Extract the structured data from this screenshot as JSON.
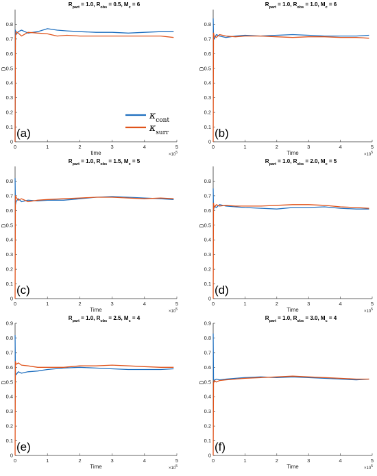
{
  "colors": {
    "cont": "#1f6fbf",
    "surr": "#e0531b"
  },
  "legend": {
    "entries": [
      {
        "symbol": "κ",
        "sub": "cont",
        "color_key": "cont"
      },
      {
        "symbol": "κ",
        "sub": "surr",
        "color_key": "surr"
      }
    ]
  },
  "chart_data": [
    {
      "type": "line",
      "panel_label": "(a)",
      "title": {
        "main_parts": [
          "R",
          "part",
          " = 1.0,   R",
          "obs",
          " = 0.5,   M",
          "c",
          " = 6"
        ]
      },
      "xlabel": "time",
      "ylabel": "D",
      "xlim": [
        0,
        5
      ],
      "ylim": [
        0,
        0.9
      ],
      "x_exponent": "×10",
      "x_exponent_power": "5",
      "xticks": [
        "0",
        "1",
        "2",
        "3",
        "4",
        "5"
      ],
      "yticks": [
        "0",
        "0.1",
        "0.2",
        "0.3",
        "0.4",
        "0.5",
        "0.6",
        "0.7",
        "0.8"
      ],
      "series": [
        {
          "name": "κcont",
          "color_key": "cont",
          "x": [
            0,
            0.01,
            0.03,
            0.1,
            0.2,
            0.4,
            0.7,
            1.0,
            1.3,
            1.6,
            2.0,
            2.5,
            3.0,
            3.5,
            4.0,
            4.5,
            4.9
          ],
          "y": [
            0,
            0.76,
            0.73,
            0.75,
            0.76,
            0.74,
            0.75,
            0.77,
            0.76,
            0.755,
            0.75,
            0.745,
            0.745,
            0.74,
            0.745,
            0.75,
            0.75
          ]
        },
        {
          "name": "κsurr",
          "color_key": "surr",
          "x": [
            0,
            0.01,
            0.03,
            0.1,
            0.2,
            0.4,
            0.7,
            1.0,
            1.3,
            1.6,
            2.0,
            2.5,
            3.0,
            3.5,
            4.0,
            4.5,
            4.9
          ],
          "y": [
            0,
            0.72,
            0.75,
            0.74,
            0.72,
            0.745,
            0.74,
            0.735,
            0.72,
            0.725,
            0.72,
            0.72,
            0.72,
            0.72,
            0.72,
            0.72,
            0.71
          ]
        }
      ]
    },
    {
      "type": "line",
      "panel_label": "(b)",
      "title": {
        "main_parts": [
          "R",
          "part",
          " = 1.0,   R",
          "obs",
          " = 1.0,   M",
          "c",
          " = 6"
        ]
      },
      "xlabel": "Time",
      "ylabel": "D",
      "xlim": [
        0,
        5
      ],
      "ylim": [
        0,
        0.9
      ],
      "x_exponent": "×10",
      "x_exponent_power": "5",
      "xticks": [
        "0",
        "1",
        "2",
        "3",
        "4",
        "5"
      ],
      "yticks": [
        "0",
        "0.1",
        "0.2",
        "0.3",
        "0.4",
        "0.5",
        "0.6",
        "0.7",
        "0.8"
      ],
      "series": [
        {
          "name": "κcont",
          "color_key": "cont",
          "x": [
            0,
            0.01,
            0.03,
            0.1,
            0.2,
            0.4,
            0.7,
            1.0,
            1.5,
            2.0,
            2.5,
            3.0,
            3.5,
            4.0,
            4.5,
            4.9
          ],
          "y": [
            0.84,
            0.72,
            0.7,
            0.73,
            0.72,
            0.71,
            0.72,
            0.725,
            0.72,
            0.725,
            0.73,
            0.725,
            0.72,
            0.72,
            0.72,
            0.725
          ]
        },
        {
          "name": "κsurr",
          "color_key": "surr",
          "x": [
            0,
            0.01,
            0.03,
            0.1,
            0.2,
            0.4,
            0.7,
            1.0,
            1.5,
            2.0,
            2.5,
            3.0,
            3.5,
            4.0,
            4.5,
            4.9
          ],
          "y": [
            0,
            0.74,
            0.72,
            0.71,
            0.73,
            0.72,
            0.715,
            0.72,
            0.72,
            0.715,
            0.71,
            0.715,
            0.715,
            0.71,
            0.71,
            0.705
          ]
        }
      ]
    },
    {
      "type": "line",
      "panel_label": "(c)",
      "title": {
        "main_parts": [
          "R",
          "part",
          " = 1.0,   R",
          "obs",
          " = 1.5,   M",
          "c",
          " = 5"
        ]
      },
      "xlabel": "Time",
      "ylabel": "D",
      "xlim": [
        0,
        5
      ],
      "ylim": [
        0,
        0.9
      ],
      "x_exponent": "×10",
      "x_exponent_power": "5",
      "xticks": [
        "0",
        "1",
        "2",
        "3",
        "4",
        "5"
      ],
      "yticks": [
        "0",
        "0.1",
        "0.2",
        "0.3",
        "0.4",
        "0.5",
        "0.6",
        "0.7",
        "0.8"
      ],
      "series": [
        {
          "name": "κcont",
          "color_key": "cont",
          "x": [
            0,
            0.01,
            0.03,
            0.1,
            0.2,
            0.4,
            0.7,
            1.0,
            1.5,
            2.0,
            2.5,
            3.0,
            3.5,
            4.0,
            4.5,
            4.9
          ],
          "y": [
            0.82,
            0.64,
            0.66,
            0.68,
            0.66,
            0.67,
            0.665,
            0.67,
            0.67,
            0.68,
            0.69,
            0.695,
            0.69,
            0.685,
            0.68,
            0.675
          ]
        },
        {
          "name": "κsurr",
          "color_key": "surr",
          "x": [
            0,
            0.01,
            0.03,
            0.1,
            0.2,
            0.4,
            0.7,
            1.0,
            1.5,
            2.0,
            2.5,
            3.0,
            3.5,
            4.0,
            4.5,
            4.9
          ],
          "y": [
            0,
            0.7,
            0.69,
            0.67,
            0.68,
            0.66,
            0.67,
            0.675,
            0.68,
            0.685,
            0.69,
            0.69,
            0.685,
            0.68,
            0.685,
            0.68
          ]
        }
      ]
    },
    {
      "type": "line",
      "panel_label": "(d)",
      "title": {
        "main_parts": [
          "R",
          "part",
          " = 1.0,   R",
          "obs",
          " = 2.0,   M",
          "c",
          " = 5"
        ]
      },
      "xlabel": "Time",
      "ylabel": "D",
      "xlim": [
        0,
        5
      ],
      "ylim": [
        0,
        0.9
      ],
      "x_exponent": "×10",
      "x_exponent_power": "5",
      "xticks": [
        "0",
        "1",
        "2",
        "3",
        "4",
        "5"
      ],
      "yticks": [
        "0",
        "0.1",
        "0.2",
        "0.3",
        "0.4",
        "0.5",
        "0.6",
        "0.7",
        "0.8"
      ],
      "series": [
        {
          "name": "κcont",
          "color_key": "cont",
          "x": [
            0,
            0.01,
            0.03,
            0.1,
            0.2,
            0.4,
            0.7,
            1.0,
            1.5,
            2.0,
            2.5,
            3.0,
            3.5,
            4.0,
            4.5,
            4.9
          ],
          "y": [
            0.75,
            0.6,
            0.63,
            0.62,
            0.64,
            0.63,
            0.625,
            0.62,
            0.615,
            0.61,
            0.62,
            0.62,
            0.625,
            0.615,
            0.61,
            0.61
          ]
        },
        {
          "name": "κsurr",
          "color_key": "surr",
          "x": [
            0,
            0.01,
            0.03,
            0.1,
            0.2,
            0.4,
            0.7,
            1.0,
            1.5,
            2.0,
            2.5,
            3.0,
            3.5,
            4.0,
            4.5,
            4.9
          ],
          "y": [
            0,
            0.65,
            0.62,
            0.64,
            0.63,
            0.635,
            0.63,
            0.63,
            0.63,
            0.635,
            0.64,
            0.64,
            0.635,
            0.625,
            0.62,
            0.615
          ]
        }
      ]
    },
    {
      "type": "line",
      "panel_label": "(e)",
      "title": {
        "main_parts": [
          "R",
          "part",
          " = 1.0,   R",
          "obs",
          " = 2.5,   M",
          "c",
          " = 4"
        ]
      },
      "xlabel": "Time",
      "ylabel": "D",
      "xlim": [
        0,
        5
      ],
      "ylim": [
        0,
        0.9
      ],
      "x_exponent": "×10",
      "x_exponent_power": "5",
      "xticks": [
        "0",
        "1",
        "2",
        "3",
        "4",
        "5"
      ],
      "yticks": [
        "0",
        "0.1",
        "0.2",
        "0.3",
        "0.4",
        "0.5",
        "0.6",
        "0.7",
        "0.8",
        "0.9"
      ],
      "series": [
        {
          "name": "κcont",
          "color_key": "cont",
          "x": [
            0,
            0.01,
            0.03,
            0.1,
            0.2,
            0.4,
            0.7,
            1.0,
            1.5,
            2.0,
            2.5,
            3.0,
            3.5,
            4.0,
            4.5,
            4.9
          ],
          "y": [
            0.82,
            0.56,
            0.55,
            0.57,
            0.56,
            0.57,
            0.575,
            0.585,
            0.595,
            0.6,
            0.595,
            0.59,
            0.585,
            0.585,
            0.585,
            0.59
          ]
        },
        {
          "name": "κsurr",
          "color_key": "surr",
          "x": [
            0,
            0.01,
            0.03,
            0.1,
            0.2,
            0.4,
            0.7,
            1.0,
            1.5,
            2.0,
            2.5,
            3.0,
            3.5,
            4.0,
            4.5,
            4.9
          ],
          "y": [
            0,
            0.64,
            0.62,
            0.63,
            0.615,
            0.61,
            0.6,
            0.6,
            0.6,
            0.61,
            0.61,
            0.615,
            0.61,
            0.605,
            0.6,
            0.6
          ]
        }
      ]
    },
    {
      "type": "line",
      "panel_label": "(f)",
      "title": {
        "main_parts": [
          "R",
          "part",
          " = 1.0,   R",
          "obs",
          " = 3.0,   M",
          "c",
          " = 4"
        ]
      },
      "xlabel": "Time",
      "ylabel": "D",
      "xlim": [
        0,
        5
      ],
      "ylim": [
        0,
        0.9
      ],
      "x_exponent": "×10",
      "x_exponent_power": "5",
      "xticks": [
        "0",
        "1",
        "2",
        "3",
        "4",
        "5"
      ],
      "yticks": [
        "0",
        "0.1",
        "0.2",
        "0.3",
        "0.4",
        "0.5",
        "0.6",
        "0.7",
        "0.8",
        "0.9"
      ],
      "series": [
        {
          "name": "κcont",
          "color_key": "cont",
          "x": [
            0,
            0.01,
            0.03,
            0.1,
            0.2,
            0.4,
            0.7,
            1.0,
            1.5,
            2.0,
            2.5,
            3.0,
            3.5,
            4.0,
            4.5,
            4.9
          ],
          "y": [
            0.83,
            0.52,
            0.51,
            0.52,
            0.515,
            0.52,
            0.525,
            0.53,
            0.535,
            0.53,
            0.535,
            0.53,
            0.525,
            0.52,
            0.515,
            0.52
          ]
        },
        {
          "name": "κsurr",
          "color_key": "surr",
          "x": [
            0,
            0.01,
            0.03,
            0.1,
            0.2,
            0.4,
            0.7,
            1.0,
            1.5,
            2.0,
            2.5,
            3.0,
            3.5,
            4.0,
            4.5,
            4.9
          ],
          "y": [
            0,
            0.49,
            0.51,
            0.5,
            0.51,
            0.515,
            0.52,
            0.525,
            0.53,
            0.535,
            0.54,
            0.535,
            0.53,
            0.525,
            0.52,
            0.52
          ]
        }
      ]
    }
  ]
}
